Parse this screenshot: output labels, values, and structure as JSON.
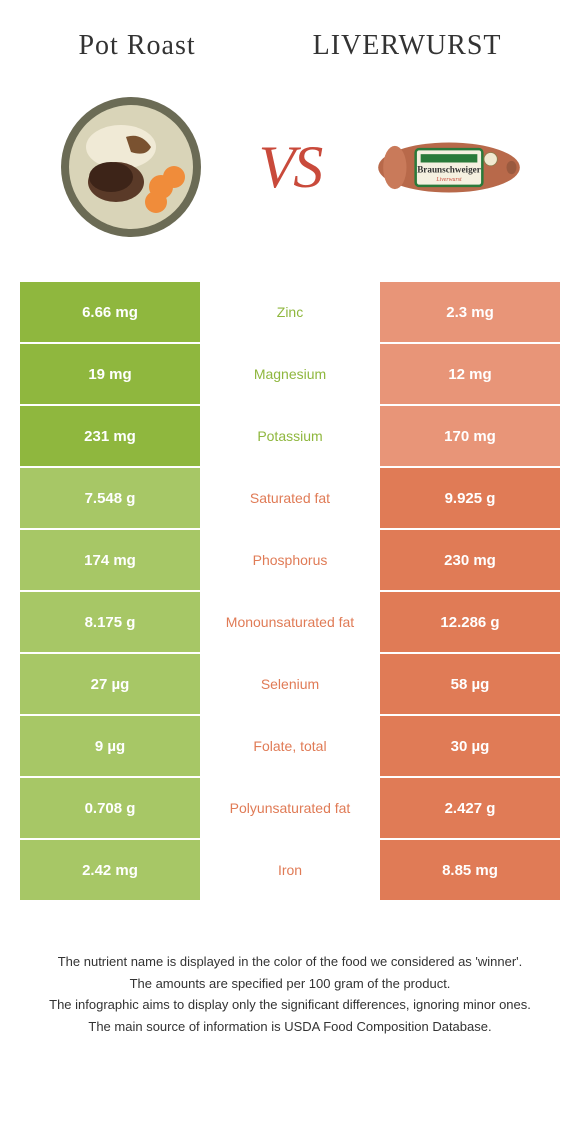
{
  "header": {
    "left_title": "Pot roast",
    "right_title": "LIVERWURST",
    "vs_label": "VS"
  },
  "colors": {
    "left_winner": "#8fb73e",
    "left_loser": "#a7c766",
    "right_winner": "#e07b56",
    "right_loser": "#e89578",
    "mid_left_text": "#8fb73e",
    "mid_right_text": "#e07b56"
  },
  "rows": [
    {
      "nutrient": "Zinc",
      "left": "6.66 mg",
      "right": "2.3 mg",
      "winner": "left"
    },
    {
      "nutrient": "Magnesium",
      "left": "19 mg",
      "right": "12 mg",
      "winner": "left"
    },
    {
      "nutrient": "Potassium",
      "left": "231 mg",
      "right": "170 mg",
      "winner": "left"
    },
    {
      "nutrient": "Saturated fat",
      "left": "7.548 g",
      "right": "9.925 g",
      "winner": "right"
    },
    {
      "nutrient": "Phosphorus",
      "left": "174 mg",
      "right": "230 mg",
      "winner": "right"
    },
    {
      "nutrient": "Monounsaturated fat",
      "left": "8.175 g",
      "right": "12.286 g",
      "winner": "right"
    },
    {
      "nutrient": "Selenium",
      "left": "27 µg",
      "right": "58 µg",
      "winner": "right"
    },
    {
      "nutrient": "Folate, total",
      "left": "9 µg",
      "right": "30 µg",
      "winner": "right"
    },
    {
      "nutrient": "Polyunsaturated fat",
      "left": "0.708 g",
      "right": "2.427 g",
      "winner": "right"
    },
    {
      "nutrient": "Iron",
      "left": "2.42 mg",
      "right": "8.85 mg",
      "winner": "right"
    }
  ],
  "footnotes": [
    "The nutrient name is displayed in the color of the food we considered as 'winner'.",
    "The amounts are specified per 100 gram of the product.",
    "The infographic aims to display only the significant differences, ignoring minor ones.",
    "The main source of information is USDA Food Composition Database."
  ]
}
